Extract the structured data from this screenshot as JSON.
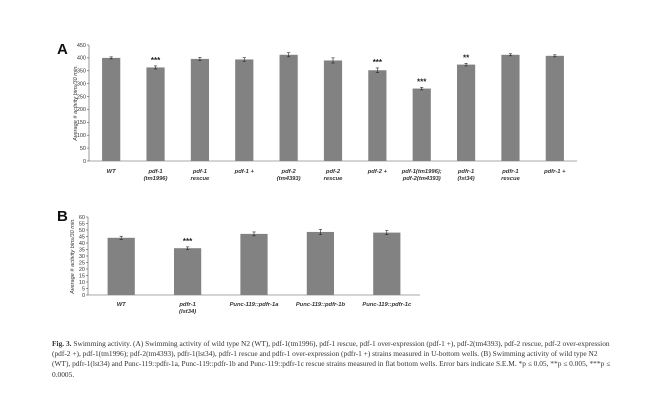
{
  "panel_a": {
    "letter": "A"
  },
  "panel_b": {
    "letter": "B"
  },
  "chart_data": [
    {
      "type": "bar",
      "ylabel": "Average # activity bins/30 min.",
      "ylim": [
        0,
        450
      ],
      "yticks": [
        0,
        50,
        100,
        150,
        200,
        250,
        300,
        350,
        400,
        450
      ],
      "grid": false,
      "categories": [
        [
          "WT"
        ],
        [
          "pdf-1",
          "(tm1996)"
        ],
        [
          "pdf-1",
          "rescue"
        ],
        [
          "pdf-1 +"
        ],
        [
          "pdf-2",
          "(tm4393)"
        ],
        [
          "pdf-2",
          "rescue"
        ],
        [
          "pdf-2 +"
        ],
        [
          "pdf-1(tm1996);",
          "pdf-2(tm4393)"
        ],
        [
          "pdfr-1",
          "(lst34)"
        ],
        [
          "pdfr-1",
          "rescue"
        ],
        [
          "pdfr-1 +"
        ]
      ],
      "values": [
        400,
        363,
        396,
        394,
        412,
        390,
        352,
        281,
        374,
        412,
        408
      ],
      "errors": [
        4,
        6,
        6,
        7,
        8,
        10,
        9,
        5,
        5,
        4,
        4
      ],
      "significance": [
        "",
        "***",
        "",
        "",
        "",
        "",
        "***",
        "***",
        "**",
        "",
        ""
      ]
    },
    {
      "type": "bar",
      "ylabel": "Average # activity bins/30 min.",
      "ylim": [
        0,
        60
      ],
      "yticks": [
        0,
        5,
        10,
        15,
        20,
        25,
        30,
        35,
        40,
        45,
        50,
        55,
        60
      ],
      "grid": false,
      "categories": [
        [
          "WT"
        ],
        [
          "pdfr-1",
          "(lst34)"
        ],
        [
          "Punc-119::pdfr-1a"
        ],
        [
          "Punc-119::pdfr-1b"
        ],
        [
          "Punc-119::pdfr-1c"
        ]
      ],
      "values": [
        44,
        36,
        47,
        48.5,
        48
      ],
      "errors": [
        1.2,
        1.0,
        1.5,
        2.0,
        1.6
      ],
      "significance": [
        "",
        "***",
        "",
        "",
        ""
      ]
    }
  ],
  "caption": {
    "lead": "Fig. 3.",
    "text": "Swimming activity. (A) Swimming activity of wild type N2 (WT), pdf-1(tm1996), pdf-1 rescue, pdf-1 over-expression (pdf-1 +), pdf-2(tm4393), pdf-2 rescue, pdf-2 over-expression (pdf-2 +), pdf-1(tm1996); pdf-2(tm4393), pdfr-1(lst34), pdfr-1 rescue and pdfr-1 over-expression (pdfr-1 +) strains measured in U-bottom wells. (B) Swimming activity of wild type N2 (WT), pdfr-1(lst34) and Punc-119::pdfr-1a, Punc-119::pdfr-1b and Punc-119::pdfr-1c rescue strains measured in flat bottom wells. Error bars indicate S.E.M. *p ≤ 0.05, **p ≤ 0.005, ***p ≤ 0.0005."
  }
}
